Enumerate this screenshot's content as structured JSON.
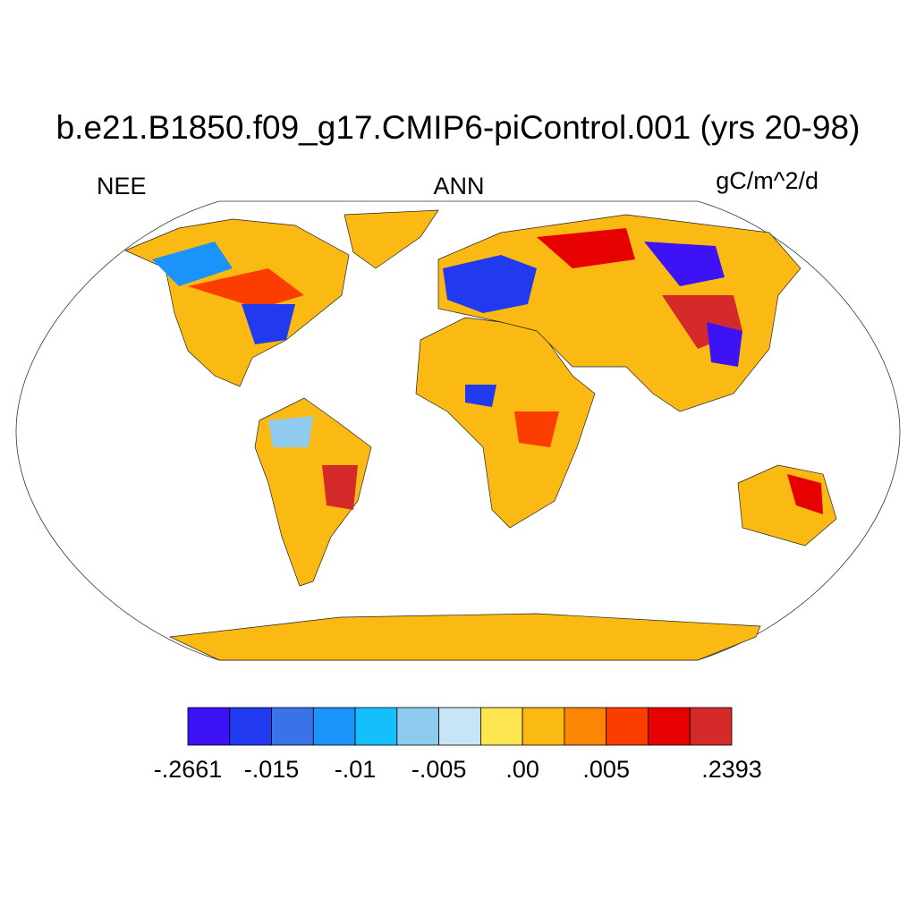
{
  "title": "b.e21.B1850.f09_g17.CMIP6-piControl.001 (yrs 20-98)",
  "left_label": "NEE",
  "center_label": "ANN",
  "right_label": "gC/m^2/d",
  "colorbar": {
    "colors": [
      "#3d13f5",
      "#2139ef",
      "#3a73e8",
      "#1a93fb",
      "#14c0fb",
      "#8ecbef",
      "#c8e5f8",
      "#fde54f",
      "#fbb913",
      "#fb8603",
      "#fb3d00",
      "#e60000",
      "#d42a2a"
    ],
    "labels": [
      {
        "value": -0.2661,
        "label": "-.2661"
      },
      {
        "value": -0.015,
        "label": "-.015"
      },
      {
        "value": -0.01,
        "label": "-.01"
      },
      {
        "value": -0.005,
        "label": "-.005"
      },
      {
        "value": 0,
        "label": ".00"
      },
      {
        "value": 0.005,
        "label": ".005"
      },
      {
        "value": 0.2393,
        "label": ".2393"
      }
    ]
  }
}
